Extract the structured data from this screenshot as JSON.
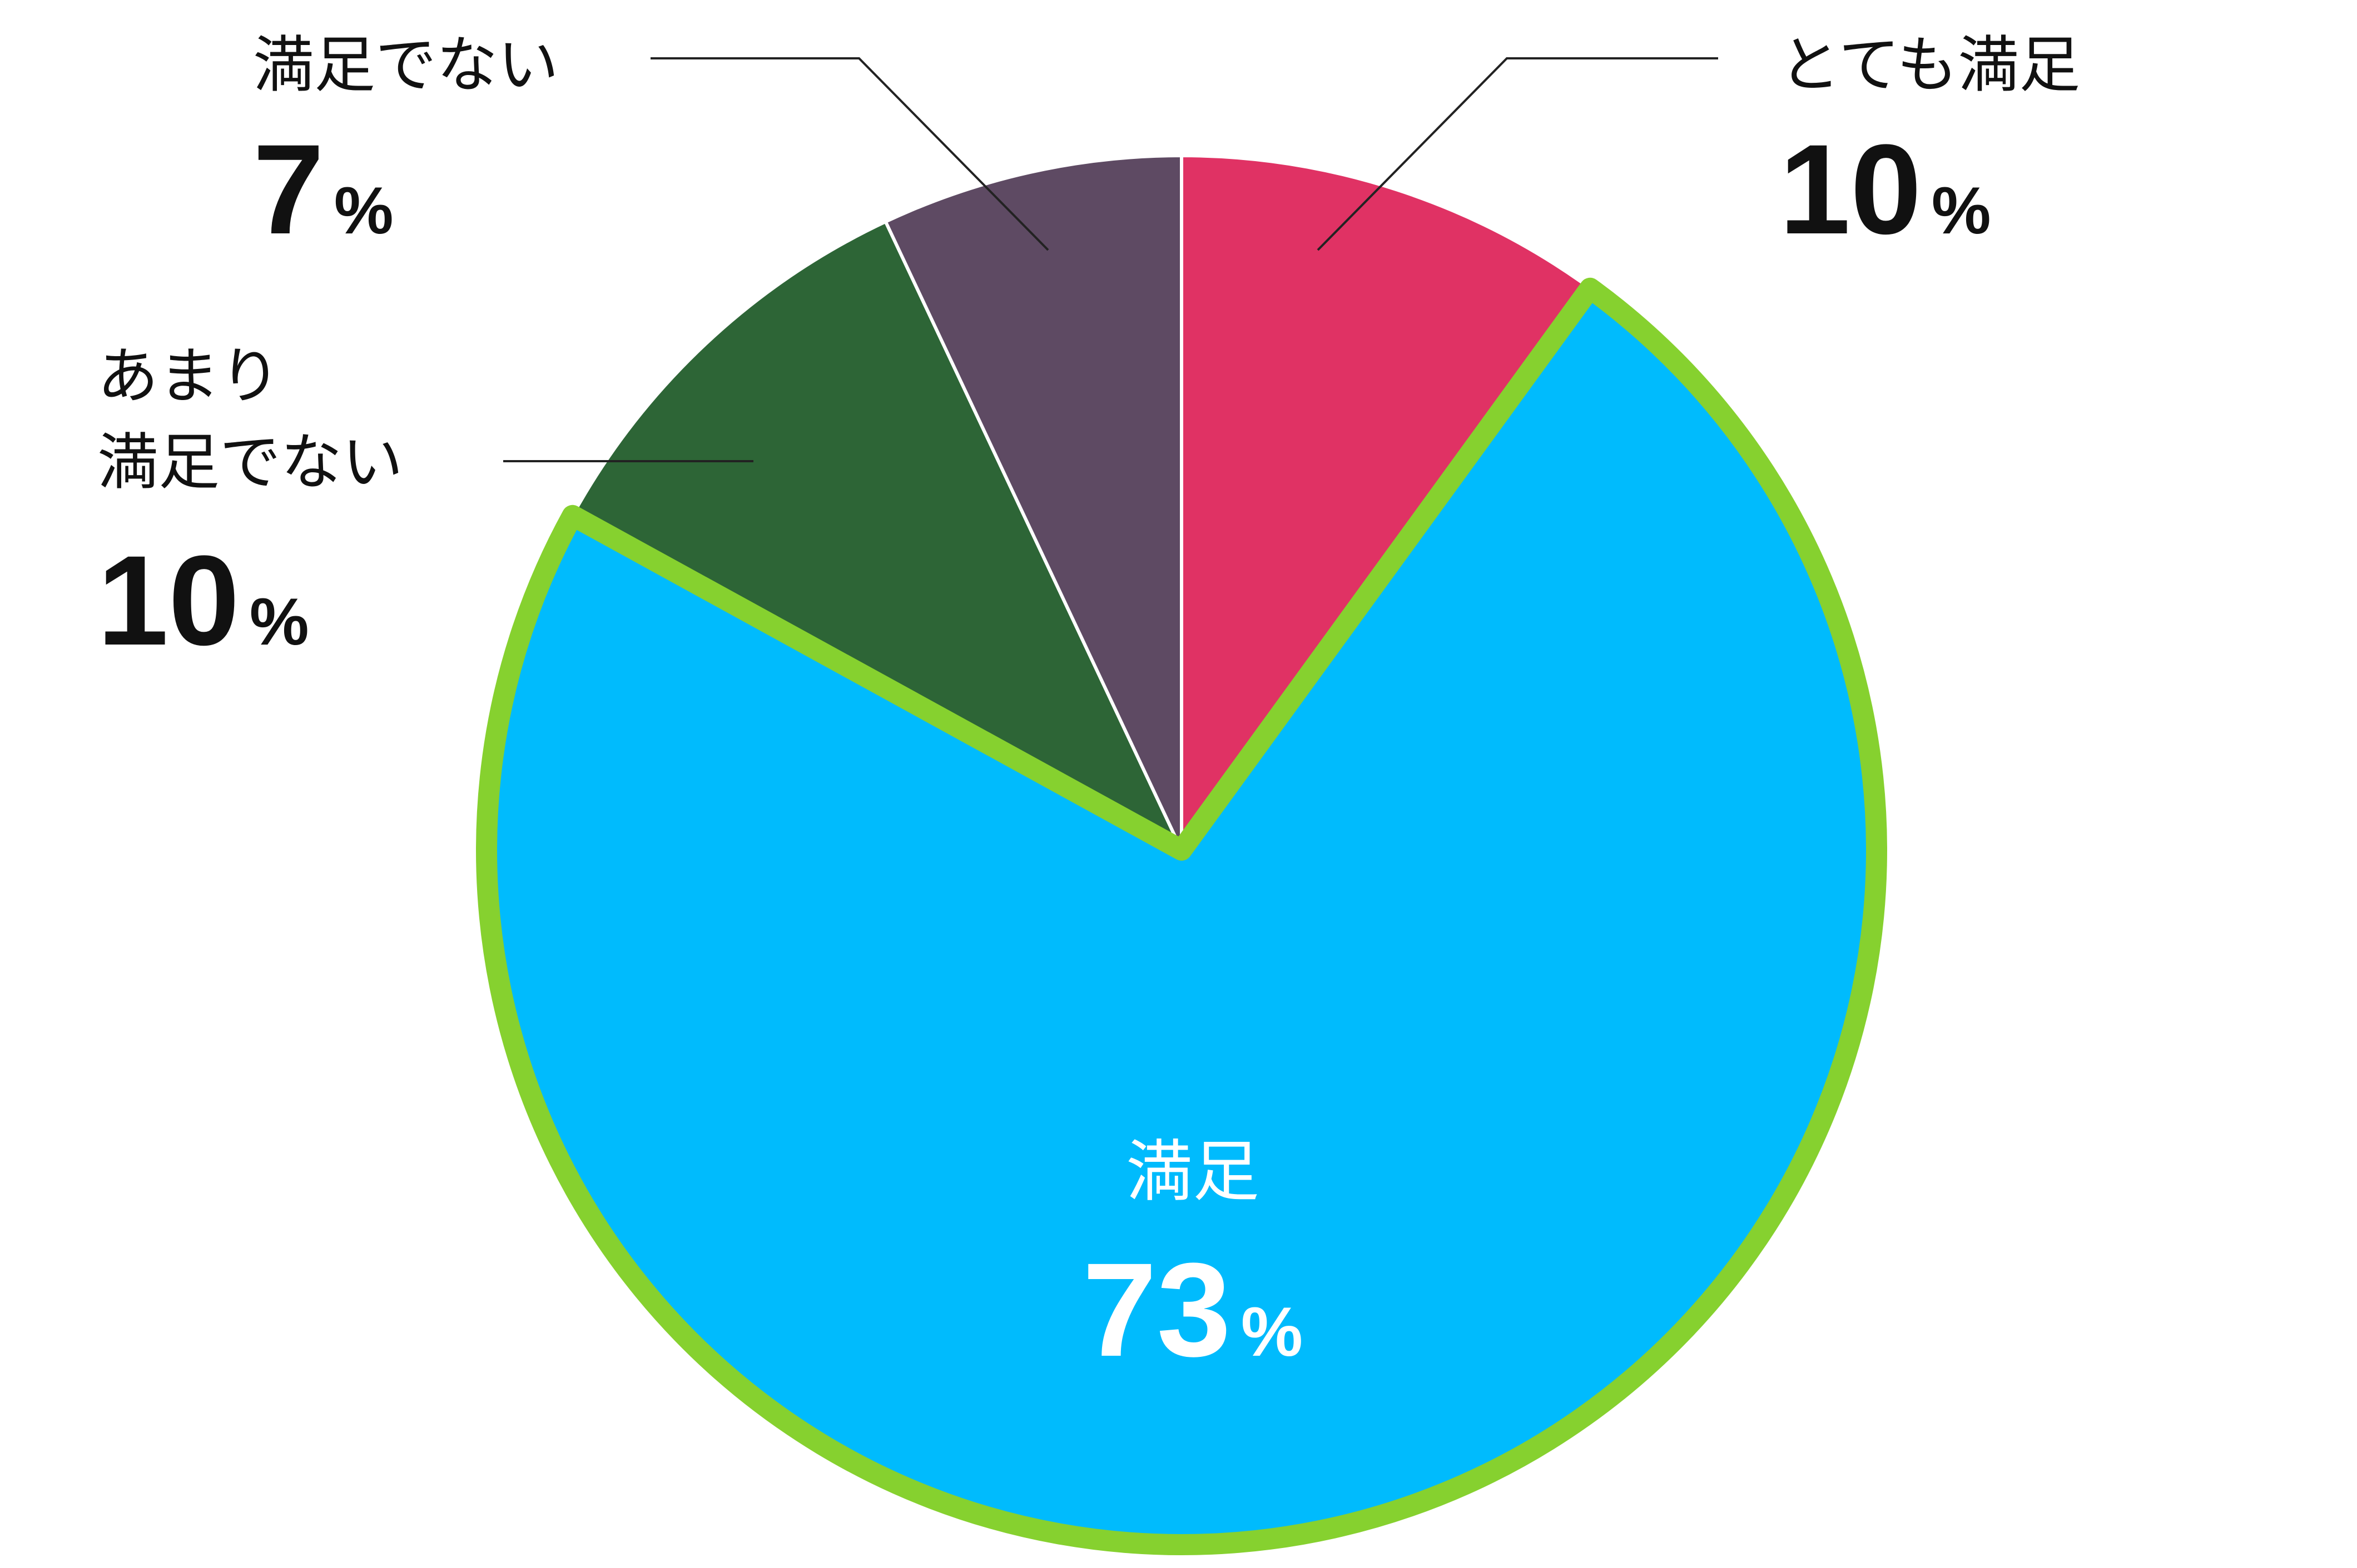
{
  "chart_data": {
    "type": "pie",
    "start_angle_deg": 0,
    "direction": "clockwise",
    "slices": [
      {
        "label": "とても満足",
        "value": 10,
        "value_text": "10",
        "unit": "%",
        "color": "#e03264",
        "label_color": "#111111",
        "highlighted": false
      },
      {
        "label": "満足",
        "value": 73,
        "value_text": "73",
        "unit": "%",
        "color": "#00bbfd",
        "label_color": "#ffffff",
        "highlighted": true
      },
      {
        "label": "あまり満足でない",
        "label_lines": [
          "あまり",
          "満足でない"
        ],
        "value": 10,
        "value_text": "10",
        "unit": "%",
        "color": "#2d6536",
        "label_color": "#111111",
        "highlighted": false
      },
      {
        "label": "満足でない",
        "value": 7,
        "value_text": "7",
        "unit": "%",
        "color": "#5e4a63",
        "label_color": "#111111",
        "highlighted": false
      }
    ],
    "highlight_color": "#86d12f",
    "separator_color": "#ffffff",
    "leader_line_color": "#222222"
  }
}
